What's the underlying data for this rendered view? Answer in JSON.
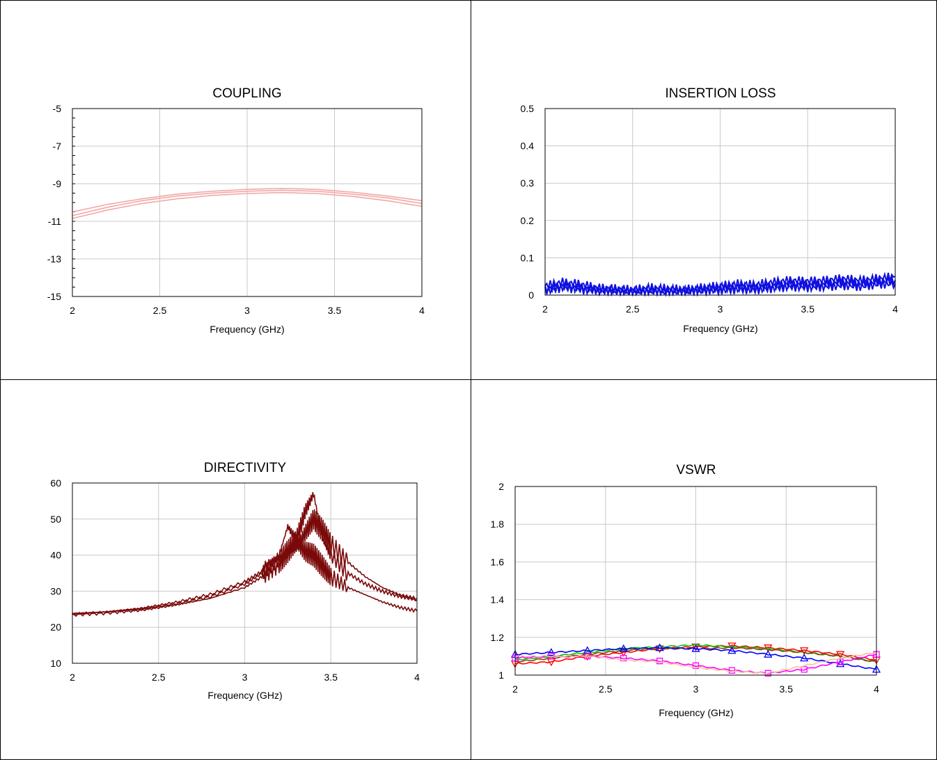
{
  "charts": [
    {
      "title": "COUPLING",
      "xlabel": "Frequency (GHz)",
      "x_ticks": [
        "2",
        "2.5",
        "3",
        "3.5",
        "4"
      ],
      "y_ticks": [
        "-5",
        "-7",
        "-9",
        "-11",
        "-13",
        "-15"
      ]
    },
    {
      "title": "INSERTION LOSS",
      "xlabel": "Frequency (GHz)",
      "x_ticks": [
        "2",
        "2.5",
        "3",
        "3.5",
        "4"
      ],
      "y_ticks": [
        "0.5",
        "0.4",
        "0.3",
        "0.2",
        "0.1",
        "0"
      ]
    },
    {
      "title": "DIRECTIVITY",
      "xlabel": "Frequency (GHz)",
      "x_ticks": [
        "2",
        "2.5",
        "3",
        "3.5",
        "4"
      ],
      "y_ticks": [
        "60",
        "50",
        "40",
        "30",
        "20",
        "10"
      ]
    },
    {
      "title": "VSWR",
      "xlabel": "Frequency (GHz)",
      "x_ticks": [
        "2",
        "2.5",
        "3",
        "3.5",
        "4"
      ],
      "y_ticks": [
        "2",
        "1.8",
        "1.6",
        "1.4",
        "1.2",
        "1"
      ]
    }
  ],
  "chart_data": [
    {
      "type": "line",
      "title": "COUPLING",
      "xlabel": "Frequency (GHz)",
      "ylabel": "",
      "xlim": [
        2,
        4
      ],
      "ylim": [
        -15,
        -5
      ],
      "grid": true,
      "color": "#f4a6a6",
      "x": [
        2.0,
        2.2,
        2.4,
        2.6,
        2.8,
        3.0,
        3.2,
        3.4,
        3.6,
        3.8,
        4.0
      ],
      "series": [
        {
          "values": [
            -10.5,
            -10.1,
            -9.8,
            -9.55,
            -9.4,
            -9.3,
            -9.25,
            -9.3,
            -9.45,
            -9.65,
            -9.9
          ]
        },
        {
          "values": [
            -10.7,
            -10.25,
            -9.9,
            -9.65,
            -9.5,
            -9.4,
            -9.35,
            -9.4,
            -9.55,
            -9.75,
            -10.05
          ]
        },
        {
          "values": [
            -10.85,
            -10.4,
            -10.05,
            -9.8,
            -9.62,
            -9.52,
            -9.47,
            -9.52,
            -9.67,
            -9.9,
            -10.2
          ]
        }
      ]
    },
    {
      "type": "line",
      "title": "INSERTION LOSS",
      "xlabel": "Frequency (GHz)",
      "ylabel": "",
      "xlim": [
        2,
        4
      ],
      "ylim": [
        0,
        0.5
      ],
      "grid": true,
      "color": "#1010e0",
      "x": [
        2.0,
        2.1,
        2.2,
        2.3,
        2.4,
        2.5,
        2.6,
        2.7,
        2.8,
        2.9,
        3.0,
        3.1,
        3.2,
        3.3,
        3.4,
        3.5,
        3.6,
        3.7,
        3.8,
        3.9,
        4.0
      ],
      "series": [
        {
          "values": [
            0.025,
            0.035,
            0.03,
            0.02,
            0.018,
            0.015,
            0.02,
            0.018,
            0.015,
            0.02,
            0.025,
            0.03,
            0.028,
            0.035,
            0.04,
            0.038,
            0.04,
            0.045,
            0.04,
            0.045,
            0.05
          ]
        },
        {
          "values": [
            0.015,
            0.025,
            0.02,
            0.015,
            0.012,
            0.01,
            0.012,
            0.01,
            0.012,
            0.015,
            0.018,
            0.022,
            0.02,
            0.025,
            0.03,
            0.028,
            0.03,
            0.035,
            0.03,
            0.035,
            0.04
          ]
        },
        {
          "values": [
            0.01,
            0.02,
            0.015,
            0.01,
            0.008,
            0.006,
            0.008,
            0.006,
            0.008,
            0.01,
            0.012,
            0.015,
            0.014,
            0.018,
            0.022,
            0.02,
            0.022,
            0.025,
            0.022,
            0.028,
            0.03
          ]
        }
      ]
    },
    {
      "type": "line",
      "title": "DIRECTIVITY",
      "xlabel": "Frequency (GHz)",
      "ylabel": "",
      "xlim": [
        2,
        4
      ],
      "ylim": [
        10,
        60
      ],
      "grid": true,
      "color": "#7a0a0a",
      "x": [
        2.0,
        2.2,
        2.4,
        2.6,
        2.8,
        3.0,
        3.1,
        3.2,
        3.25,
        3.3,
        3.35,
        3.4,
        3.45,
        3.5,
        3.6,
        3.7,
        3.8,
        3.9,
        4.0
      ],
      "series": [
        {
          "values": [
            23.5,
            24.2,
            25.0,
            26.5,
            28.5,
            32.0,
            35.0,
            40.0,
            48.0,
            44.0,
            41.0,
            40.0,
            37.0,
            34.0,
            31.0,
            29.0,
            27.0,
            25.5,
            24.5
          ]
        },
        {
          "values": [
            23.5,
            24.0,
            24.8,
            26.2,
            28.0,
            31.0,
            34.0,
            38.0,
            41.0,
            44.0,
            52.0,
            57.0,
            45.0,
            40.0,
            35.0,
            32.0,
            30.0,
            28.5,
            27.5
          ]
        },
        {
          "values": [
            23.8,
            24.3,
            25.2,
            26.8,
            29.0,
            32.5,
            35.5,
            38.5,
            40.0,
            42.0,
            46.0,
            50.0,
            47.0,
            43.0,
            38.0,
            34.0,
            31.0,
            29.0,
            28.0
          ]
        }
      ]
    },
    {
      "type": "line",
      "title": "VSWR",
      "xlabel": "Frequency (GHz)",
      "ylabel": "",
      "xlim": [
        2,
        4
      ],
      "ylim": [
        1,
        2
      ],
      "grid": true,
      "x": [
        2.0,
        2.2,
        2.4,
        2.6,
        2.8,
        3.0,
        3.2,
        3.4,
        3.6,
        3.8,
        4.0
      ],
      "series": [
        {
          "color": "#ff0000",
          "marker": "triangle-down",
          "values": [
            1.06,
            1.07,
            1.1,
            1.12,
            1.14,
            1.15,
            1.155,
            1.145,
            1.13,
            1.11,
            1.08
          ]
        },
        {
          "color": "#00cc00",
          "marker": "none",
          "values": [
            1.08,
            1.1,
            1.12,
            1.14,
            1.15,
            1.16,
            1.15,
            1.14,
            1.12,
            1.1,
            1.07
          ]
        },
        {
          "color": "#8b4513",
          "marker": "none",
          "values": [
            1.07,
            1.09,
            1.11,
            1.13,
            1.14,
            1.14,
            1.145,
            1.135,
            1.12,
            1.1,
            1.07
          ]
        },
        {
          "color": "#0000ff",
          "marker": "triangle-up",
          "values": [
            1.11,
            1.12,
            1.13,
            1.14,
            1.145,
            1.14,
            1.13,
            1.11,
            1.09,
            1.06,
            1.03
          ]
        },
        {
          "color": "#ff00ff",
          "marker": "square",
          "values": [
            1.09,
            1.1,
            1.1,
            1.09,
            1.075,
            1.05,
            1.025,
            1.01,
            1.03,
            1.07,
            1.11
          ]
        },
        {
          "color": "#f4c2a0",
          "marker": "none",
          "values": [
            1.1,
            1.1,
            1.1,
            1.08,
            1.07,
            1.04,
            1.02,
            1.01,
            1.05,
            1.09,
            1.12
          ]
        }
      ]
    }
  ]
}
